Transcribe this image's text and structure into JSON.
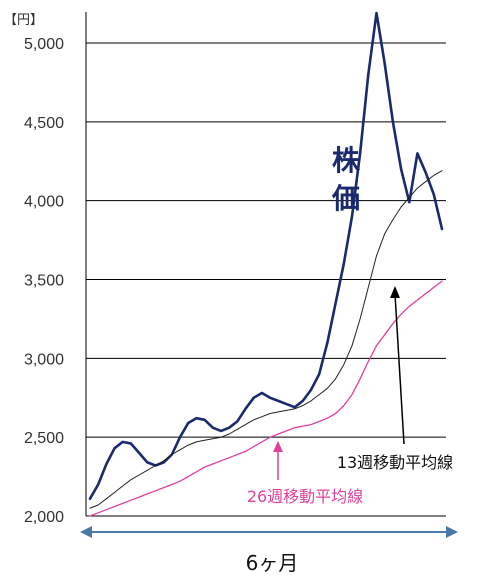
{
  "chart_data": {
    "type": "line",
    "unit_label": "【円】",
    "xlabel": "6ヶ月",
    "ylim": [
      2000,
      5200
    ],
    "yticks": [
      2000,
      2500,
      3000,
      3500,
      4000,
      4500,
      5000
    ],
    "ytick_labels": [
      "2,000",
      "2,500",
      "3,000",
      "3,500",
      "4,000",
      "4,500",
      "5,000"
    ],
    "grid": true,
    "series": [
      {
        "name": "株価",
        "color": "#1a2a6c",
        "values": [
          2110,
          2200,
          2330,
          2430,
          2470,
          2460,
          2400,
          2340,
          2320,
          2340,
          2390,
          2500,
          2590,
          2620,
          2610,
          2560,
          2540,
          2560,
          2600,
          2680,
          2750,
          2780,
          2750,
          2730,
          2710,
          2690,
          2730,
          2800,
          2900,
          3100,
          3350,
          3600,
          3900,
          4300,
          4800,
          5190,
          4870,
          4500,
          4200,
          3990,
          4300,
          4180,
          4040,
          3820
        ]
      },
      {
        "name": "13週移動平均線",
        "color": "#222222",
        "values": [
          2050,
          2070,
          2110,
          2150,
          2190,
          2230,
          2260,
          2290,
          2320,
          2350,
          2390,
          2420,
          2450,
          2470,
          2480,
          2490,
          2500,
          2520,
          2550,
          2580,
          2610,
          2630,
          2650,
          2660,
          2670,
          2680,
          2700,
          2730,
          2770,
          2810,
          2870,
          2960,
          3080,
          3250,
          3450,
          3650,
          3790,
          3880,
          3960,
          4020,
          4080,
          4120,
          4160,
          4190
        ]
      },
      {
        "name": "26週移動平均線",
        "color": "#e0409a",
        "values": [
          2000,
          2020,
          2040,
          2060,
          2080,
          2100,
          2120,
          2140,
          2160,
          2180,
          2200,
          2220,
          2250,
          2280,
          2310,
          2330,
          2350,
          2370,
          2390,
          2410,
          2440,
          2470,
          2500,
          2520,
          2540,
          2560,
          2570,
          2580,
          2600,
          2620,
          2650,
          2700,
          2770,
          2870,
          2980,
          3080,
          3150,
          3220,
          3280,
          3330,
          3370,
          3410,
          3450,
          3490
        ]
      }
    ],
    "annotations": [
      {
        "text": "株価",
        "series": "株価"
      },
      {
        "text": "13週移動平均線",
        "series": "13週移動平均線"
      },
      {
        "text": "26週移動平均線",
        "series": "26週移動平均線"
      }
    ]
  }
}
